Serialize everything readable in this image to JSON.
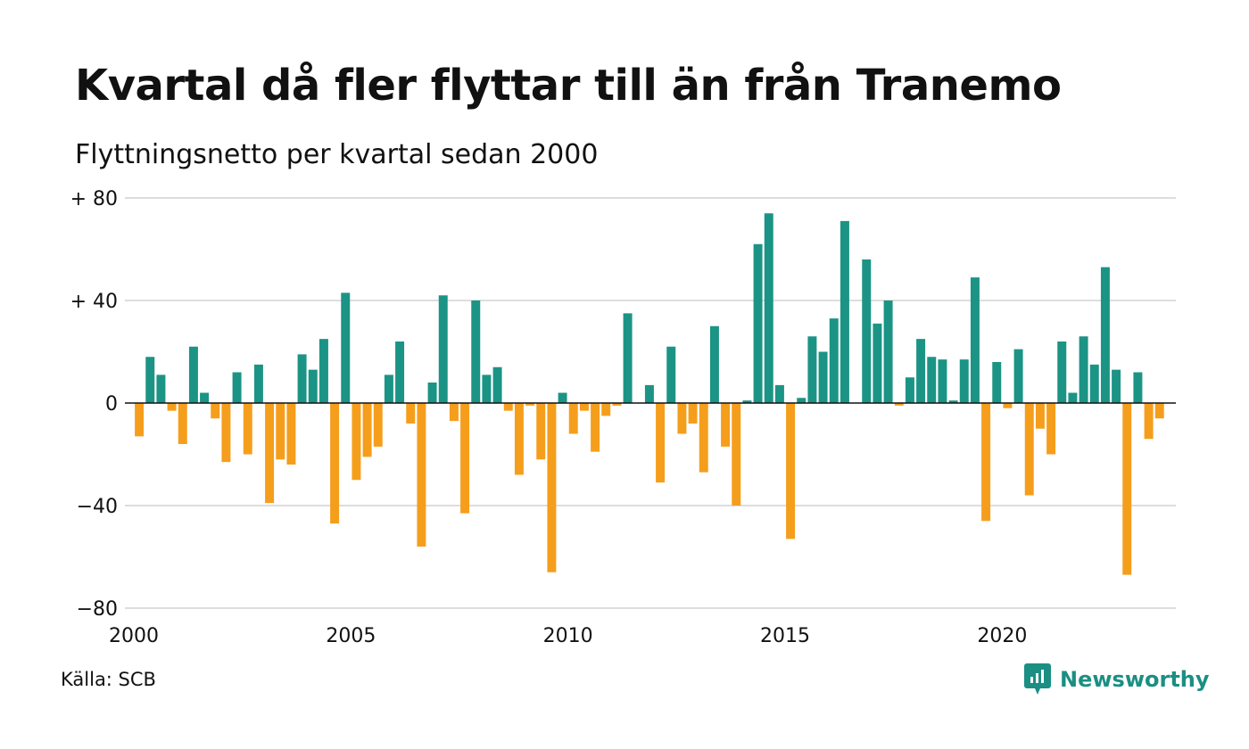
{
  "title": "Kvartal då fler flyttar till än från Tranemo",
  "subtitle": "Flyttningsnetto per kvartal sedan 2000",
  "source": "Källa: SCB",
  "brand": {
    "name": "Newsworthy",
    "icon": "newsworthy-logo-icon"
  },
  "colors": {
    "positive": "#1b9485",
    "negative": "#f59e1c",
    "grid": "#dddddd",
    "zero": "#111111"
  },
  "chart_data": {
    "type": "bar",
    "title": "Kvartal då fler flyttar till än från Tranemo",
    "subtitle": "Flyttningsnetto per kvartal sedan 2000",
    "xlabel": "",
    "ylabel": "",
    "ylim": [
      -80,
      80
    ],
    "xlim": [
      2000,
      2024
    ],
    "grid": true,
    "legend": "none",
    "yticks": [
      {
        "value": 80,
        "label": "+ 80"
      },
      {
        "value": 40,
        "label": "+ 40"
      },
      {
        "value": 0,
        "label": "0"
      },
      {
        "value": -40,
        "label": "−40"
      },
      {
        "value": -80,
        "label": "−80"
      }
    ],
    "xticks": [
      {
        "value": 2000,
        "label": "2000"
      },
      {
        "value": 2005,
        "label": "2005"
      },
      {
        "value": 2010,
        "label": "2010"
      },
      {
        "value": 2015,
        "label": "2015"
      },
      {
        "value": 2020,
        "label": "2020"
      }
    ],
    "start_year": 2000,
    "quarters_per_year": 4,
    "values": [
      -13,
      18,
      11,
      -3,
      -16,
      22,
      4,
      -6,
      -23,
      12,
      -20,
      15,
      -39,
      -22,
      -24,
      19,
      13,
      25,
      -47,
      43,
      -30,
      -21,
      -17,
      11,
      24,
      -8,
      -56,
      8,
      42,
      -7,
      -43,
      40,
      11,
      14,
      -3,
      -28,
      -1,
      -22,
      -66,
      4,
      -12,
      -3,
      -19,
      -5,
      -1,
      35,
      0,
      7,
      -31,
      22,
      -12,
      -8,
      -27,
      30,
      -17,
      -40,
      1,
      62,
      74,
      7,
      -53,
      2,
      26,
      20,
      33,
      71,
      0,
      56,
      31,
      40,
      -1,
      10,
      25,
      18,
      17,
      1,
      17,
      49,
      -46,
      16,
      -2,
      21,
      -36,
      -10,
      -20,
      24,
      4,
      26,
      15,
      53,
      13,
      -67,
      12,
      -14,
      -6
    ]
  }
}
